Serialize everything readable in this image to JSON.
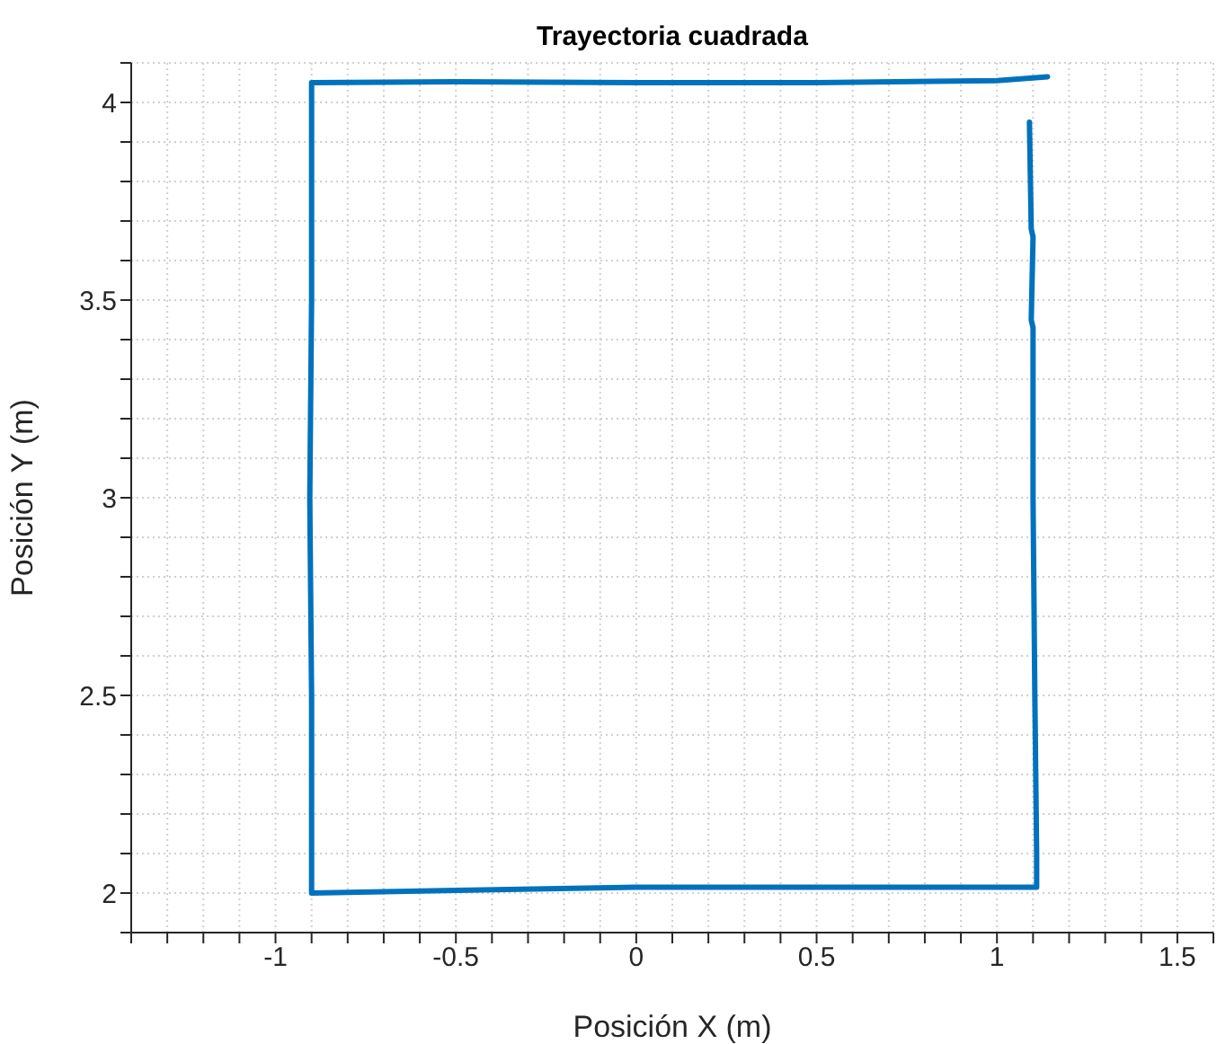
{
  "chart_data": {
    "type": "line",
    "title": "Trayectoria cuadrada",
    "xlabel": "Posición X (m)",
    "ylabel": "Posición Y (m)",
    "xlim": [
      -1.4,
      1.6
    ],
    "ylim": [
      1.9,
      4.1
    ],
    "xticks": [
      {
        "value": -1.4,
        "label": null
      },
      {
        "value": -1.3,
        "label": null
      },
      {
        "value": -1.2,
        "label": null
      },
      {
        "value": -1.1,
        "label": null
      },
      -1,
      {
        "value": -0.9,
        "label": null
      },
      {
        "value": -0.8,
        "label": null
      },
      {
        "value": -0.7,
        "label": null
      },
      {
        "value": -0.6,
        "label": null
      },
      -0.5,
      {
        "value": -0.4,
        "label": null
      },
      {
        "value": -0.3,
        "label": null
      },
      {
        "value": -0.2,
        "label": null
      },
      {
        "value": -0.1,
        "label": null
      },
      0,
      {
        "value": 0.1,
        "label": null
      },
      {
        "value": 0.2,
        "label": null
      },
      {
        "value": 0.3,
        "label": null
      },
      {
        "value": 0.4,
        "label": null
      },
      0.5,
      {
        "value": 0.6,
        "label": null
      },
      {
        "value": 0.7,
        "label": null
      },
      {
        "value": 0.8,
        "label": null
      },
      {
        "value": 0.9,
        "label": null
      },
      1,
      {
        "value": 1.1,
        "label": null
      },
      {
        "value": 1.2,
        "label": null
      },
      {
        "value": 1.3,
        "label": null
      },
      {
        "value": 1.4,
        "label": null
      },
      1.5,
      {
        "value": 1.6,
        "label": null
      }
    ],
    "yticks": [
      {
        "value": 1.9,
        "label": null
      },
      2,
      {
        "value": 2.1,
        "label": null
      },
      {
        "value": 2.2,
        "label": null
      },
      {
        "value": 2.3,
        "label": null
      },
      {
        "value": 2.4,
        "label": null
      },
      2.5,
      {
        "value": 2.6,
        "label": null
      },
      {
        "value": 2.7,
        "label": null
      },
      {
        "value": 2.8,
        "label": null
      },
      {
        "value": 2.9,
        "label": null
      },
      3,
      {
        "value": 3.1,
        "label": null
      },
      {
        "value": 3.2,
        "label": null
      },
      {
        "value": 3.3,
        "label": null
      },
      {
        "value": 3.4,
        "label": null
      },
      3.5,
      {
        "value": 3.6,
        "label": null
      },
      {
        "value": 3.7,
        "label": null
      },
      {
        "value": 3.8,
        "label": null
      },
      {
        "value": 3.9,
        "label": null
      },
      4,
      {
        "value": 4.1,
        "label": null
      }
    ],
    "grid": true,
    "marker": "none",
    "line_style": "solid",
    "series": [
      {
        "color": "#0072bd",
        "x": [
          1.09,
          1.095,
          1.1,
          1.095,
          1.1,
          1.1,
          1.105,
          1.11,
          1.11,
          0.5,
          0,
          -0.5,
          -0.9,
          -0.9,
          -0.905,
          -0.9,
          -0.9,
          -0.5,
          0,
          0.5,
          1.0,
          1.14
        ],
        "values": [
          3.95,
          3.68,
          3.66,
          3.45,
          3.43,
          3.0,
          2.5,
          2.1,
          2.015,
          2.015,
          2.015,
          2.007,
          2.0,
          2.5,
          3.0,
          3.5,
          4.05,
          4.052,
          4.05,
          4.05,
          4.055,
          4.065
        ]
      }
    ]
  }
}
